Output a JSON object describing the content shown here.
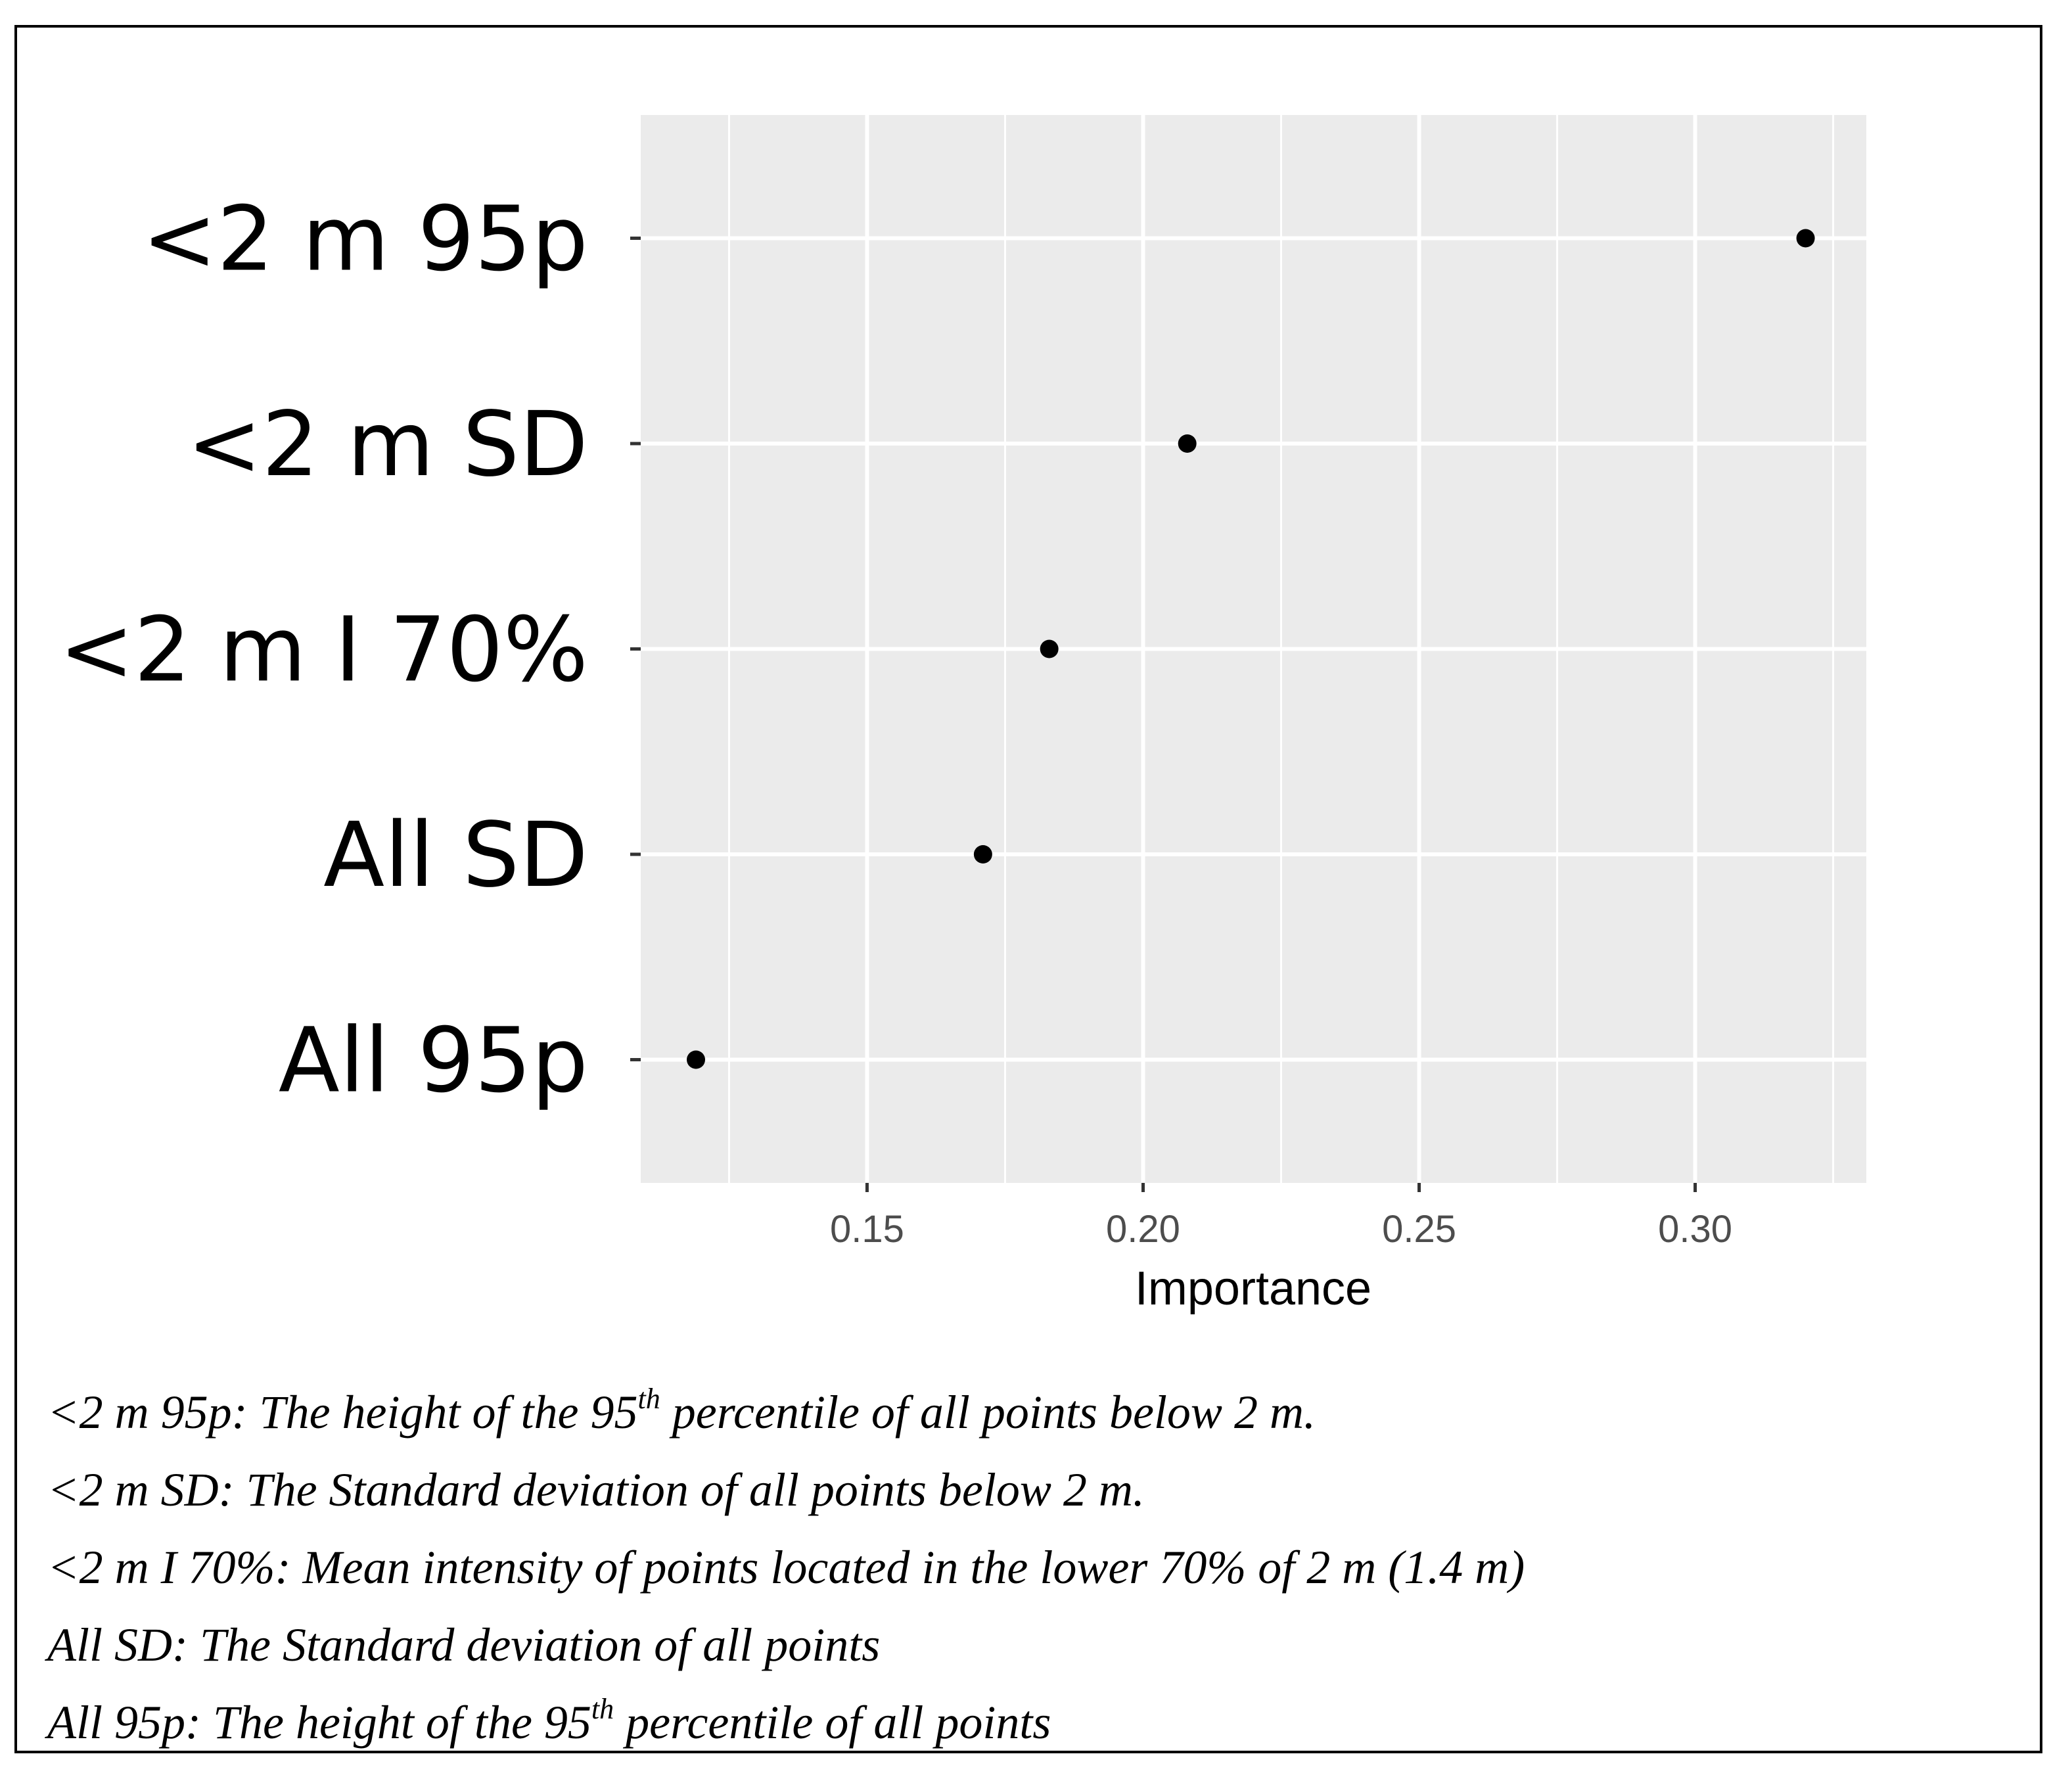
{
  "chart_data": {
    "type": "scatter",
    "title": "",
    "xlabel": "Importance",
    "ylabel": "",
    "xlim": [
      0.109,
      0.331
    ],
    "xticks": [
      0.15,
      0.2,
      0.25,
      0.3
    ],
    "xtick_labels": [
      "0.15",
      "0.20",
      "0.25",
      "0.30"
    ],
    "grid": true,
    "categories": [
      "<2 m 95p",
      "<2 m SD",
      "<2 m I 70%",
      "All SD",
      "All 95p"
    ],
    "values": [
      0.32,
      0.208,
      0.183,
      0.171,
      0.119
    ],
    "colors": {
      "panel": "#ebebeb",
      "grid": "#ffffff",
      "point": "#000000",
      "tick_text": "#4d4d4d",
      "tick_mark": "#333333"
    }
  },
  "legend": [
    {
      "before": "<2 m 95p: The height of the 95",
      "sup": "th",
      "after": " percentile of all points below 2 m."
    },
    {
      "before": "<2 m SD: The Standard deviation of all points below 2 m.",
      "sup": "",
      "after": ""
    },
    {
      "before": "<2 m I 70%: Mean intensity of points located in the lower 70% of 2 m (1.4 m)",
      "sup": "",
      "after": ""
    },
    {
      "before": "All SD: The Standard deviation of all points",
      "sup": "",
      "after": ""
    },
    {
      "before": "All 95p: The height of the 95",
      "sup": "th",
      "after": " percentile of all points"
    }
  ]
}
